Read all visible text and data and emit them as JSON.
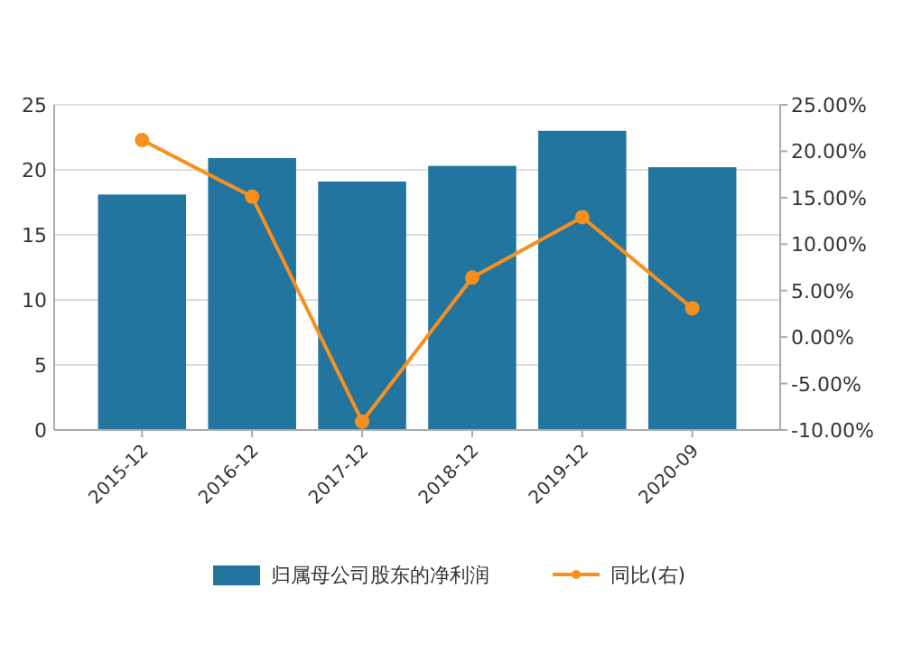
{
  "chart_data": {
    "type": "bar",
    "categories": [
      "2015-12",
      "2016-12",
      "2017-12",
      "2018-12",
      "2019-12",
      "2020-09"
    ],
    "series": [
      {
        "name": "归属母公司股东的净利润",
        "color": "#21759f",
        "values": [
          18.1,
          20.9,
          19.1,
          20.3,
          23.0,
          20.2
        ]
      },
      {
        "name": "同比(右)",
        "type": "line",
        "axis": "y2",
        "color": "#f7901e",
        "marker": "circle",
        "values": [
          21.2,
          15.1,
          -9.1,
          6.4,
          12.9,
          3.1
        ]
      }
    ],
    "ylim": [
      0,
      25
    ],
    "yticks": [
      0,
      5,
      10,
      15,
      20,
      25
    ],
    "y2lim": [
      -10,
      25
    ],
    "y2ticks": [
      {
        "value": -10,
        "label": "-10.00%"
      },
      {
        "value": -5,
        "label": "-5.00%"
      },
      {
        "value": 0,
        "label": "0.00%"
      },
      {
        "value": 5,
        "label": "5.00%"
      },
      {
        "value": 10,
        "label": "10.00%"
      },
      {
        "value": 15,
        "label": "15.00%"
      },
      {
        "value": 20,
        "label": "20.00%"
      },
      {
        "value": 25,
        "label": "25.00%"
      }
    ],
    "grid": "y",
    "legend": "bottom"
  }
}
